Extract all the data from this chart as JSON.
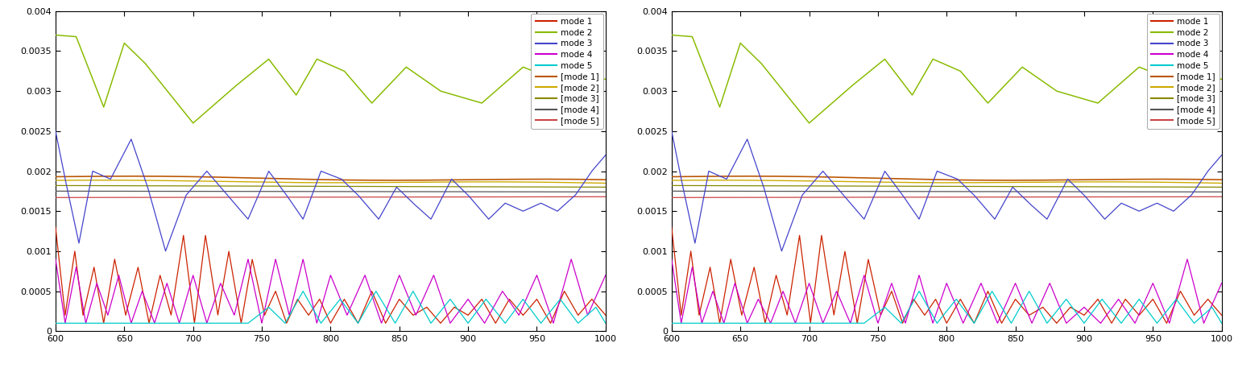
{
  "xlim": [
    600,
    1000
  ],
  "ylim": [
    0,
    0.004
  ],
  "yticks": [
    0,
    0.0005,
    0.001,
    0.0015,
    0.002,
    0.0025,
    0.003,
    0.0035,
    0.004
  ],
  "xticks": [
    600,
    650,
    700,
    750,
    800,
    850,
    900,
    950,
    1000
  ],
  "colors": {
    "mode1": "#cc2200",
    "mode2": "#88bb00",
    "mode3": "#4444cc",
    "mode4": "#cc00cc",
    "mode5": "#00cccc",
    "bmode1": "#bb5500",
    "bmode2": "#ccaa00",
    "bmode3": "#888800",
    "bmode4": "#555555",
    "bmode5": "#cc4444"
  },
  "figsize": [
    15.32,
    4.57
  ],
  "dpi": 100
}
